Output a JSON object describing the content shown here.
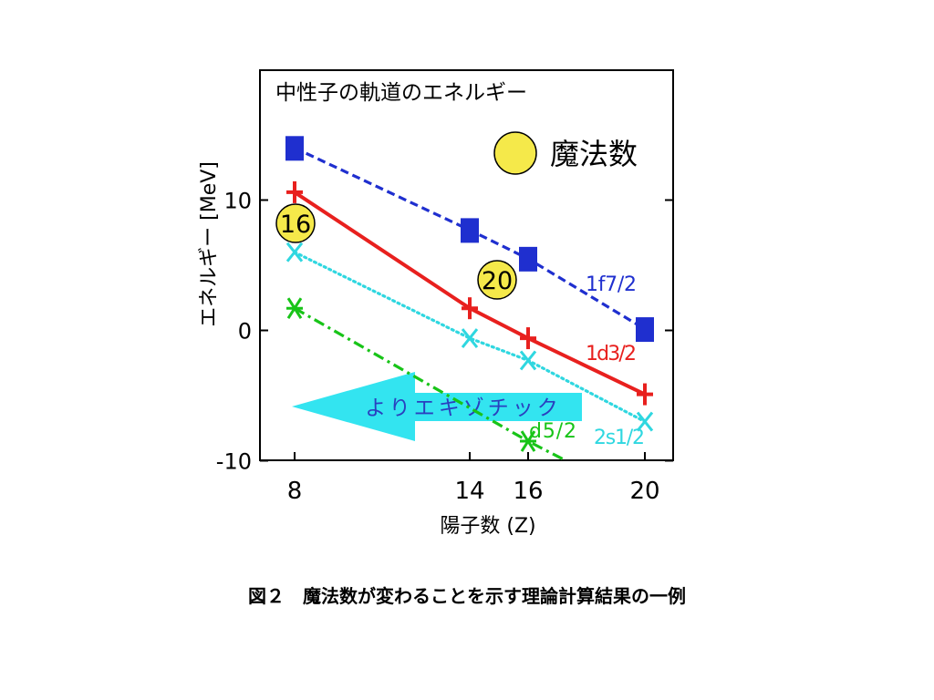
{
  "caption": "図２　魔法数が変わることを示す理論計算結果の一例",
  "chart_data": {
    "type": "line",
    "inner_title": "中性子の軌道のエネルギー",
    "xlabel": "陽子数 (Z)",
    "ylabel": "エネルギー [MeV]",
    "x_ticks": [
      8,
      14,
      16,
      20
    ],
    "y_ticks": [
      10,
      0,
      -10
    ],
    "xlim": [
      8,
      20
    ],
    "ylim": [
      -10,
      20
    ],
    "legend": {
      "label": "魔法数",
      "color": "#f5e94a"
    },
    "arrow_label": "よりエキゾチック",
    "magic_markers": [
      {
        "label": "16",
        "x": 8,
        "y": 8.2
      },
      {
        "label": "20",
        "x": 14.8,
        "y": 3.8
      }
    ],
    "series": [
      {
        "name": "1f7/2",
        "color": "#1f2fcf",
        "style": "dashed",
        "marker": "square",
        "x": [
          8,
          14,
          16,
          20
        ],
        "y": [
          14.0,
          7.7,
          5.5,
          0.1
        ]
      },
      {
        "name": "1d3/2",
        "color": "#e8201e",
        "style": "solid",
        "marker": "plus",
        "x": [
          8,
          14,
          16,
          20
        ],
        "y": [
          10.6,
          1.7,
          -0.6,
          -4.9
        ]
      },
      {
        "name": "2s1/2",
        "color": "#2fd7e0",
        "style": "dotted",
        "marker": "x",
        "x": [
          8,
          14,
          16,
          20
        ],
        "y": [
          6.0,
          -0.6,
          -2.3,
          -7.0
        ]
      },
      {
        "name": "1d5/2",
        "visible_label": "d5/2",
        "color": "#18c418",
        "style": "dashdot",
        "marker": "asterisk",
        "x": [
          8,
          16,
          17.3
        ],
        "y": [
          1.7,
          -8.5,
          -10
        ]
      }
    ]
  }
}
